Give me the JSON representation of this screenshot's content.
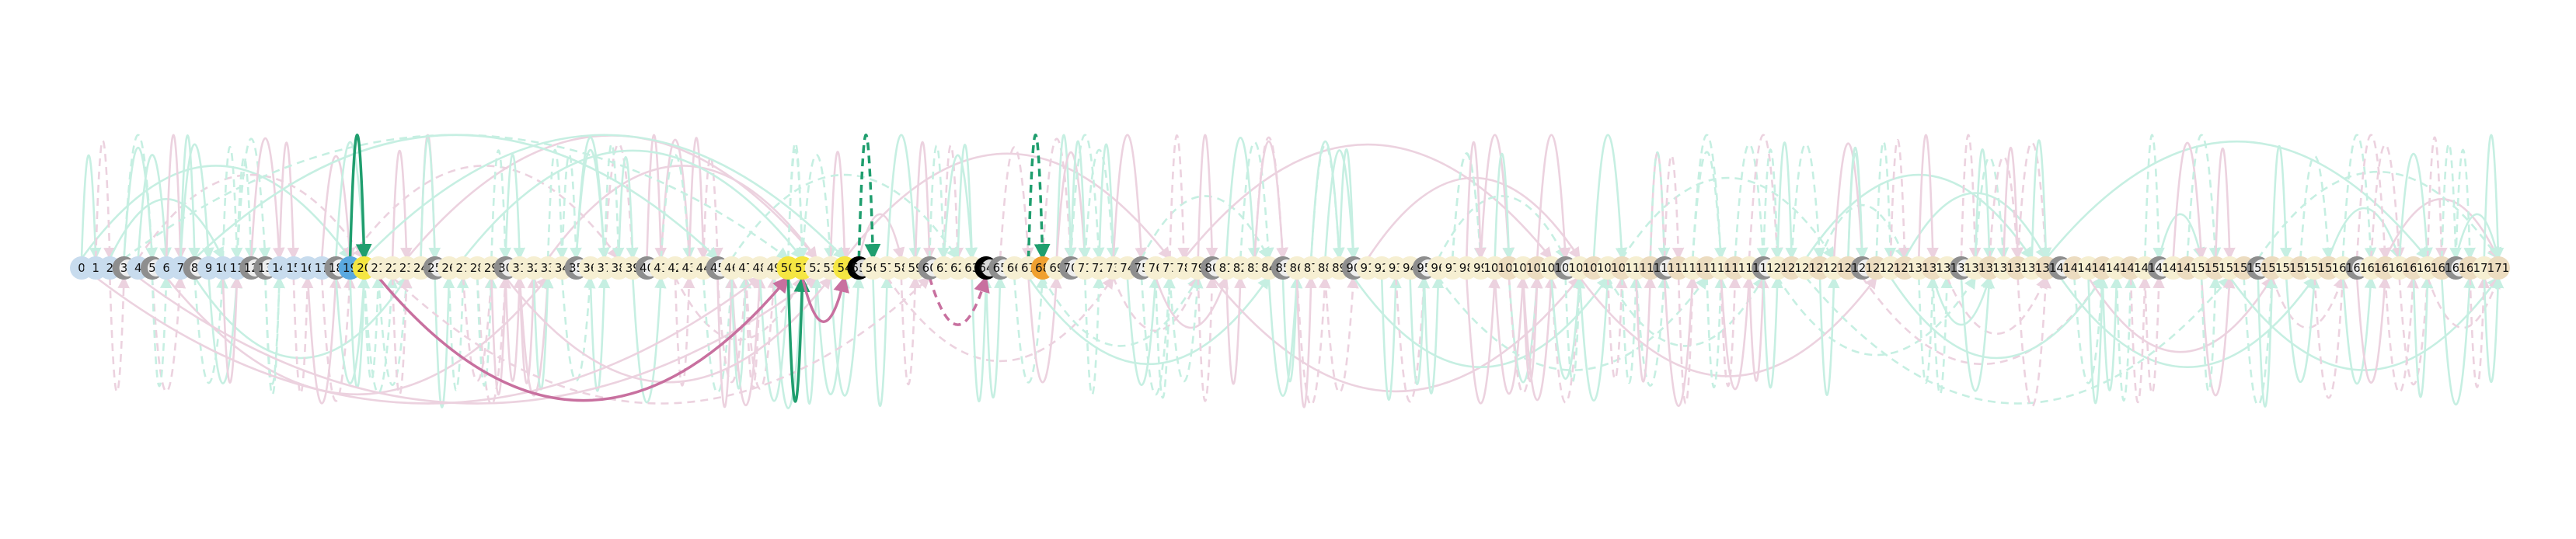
{
  "diagram": {
    "type": "arc-diagram",
    "node_count": 172,
    "node_labels": [
      "0",
      "1",
      "2",
      "3",
      "4",
      "5",
      "6",
      "7",
      "8",
      "9",
      "10",
      "11",
      "12",
      "13",
      "14",
      "15",
      "16",
      "17",
      "18",
      "19",
      "20",
      "21",
      "22",
      "23",
      "24",
      "25",
      "26",
      "27",
      "28",
      "29",
      "30",
      "31",
      "32",
      "33",
      "34",
      "35",
      "36",
      "37",
      "38",
      "39",
      "40",
      "41",
      "42",
      "43",
      "44",
      "45",
      "46",
      "47",
      "48",
      "49",
      "50",
      "51",
      "52",
      "53",
      "54",
      "55",
      "56",
      "57",
      "58",
      "59",
      "60",
      "61",
      "62",
      "63",
      "64",
      "65",
      "66",
      "67",
      "68",
      "69",
      "70",
      "71",
      "72",
      "73",
      "74",
      "75",
      "76",
      "77",
      "78",
      "79",
      "80",
      "81",
      "82",
      "83",
      "84",
      "85",
      "86",
      "87",
      "88",
      "89",
      "90",
      "91",
      "92",
      "93",
      "94",
      "95",
      "96",
      "97",
      "98",
      "99",
      "100",
      "101",
      "102",
      "103",
      "104",
      "105",
      "106",
      "107",
      "108",
      "109",
      "110",
      "111",
      "112",
      "113",
      "114",
      "115",
      "116",
      "117",
      "118",
      "119",
      "120",
      "121",
      "122",
      "123",
      "124",
      "125",
      "126",
      "127",
      "128",
      "129",
      "130",
      "131",
      "132",
      "133",
      "134",
      "135",
      "136",
      "137",
      "138",
      "139",
      "140",
      "141",
      "142",
      "143",
      "144",
      "145",
      "146",
      "147",
      "148",
      "149",
      "150",
      "151",
      "152",
      "153",
      "154",
      "155",
      "156",
      "157",
      "158",
      "159",
      "160",
      "161",
      "162",
      "163",
      "164",
      "165",
      "166",
      "167",
      "168",
      "169",
      "170",
      "171"
    ],
    "colors": {
      "node_blue": "#c8dcee",
      "node_cream": "#f6efd2",
      "node_tan": "#ecdcc0",
      "node_gray": "#8e8e8e",
      "node_black": "#000000",
      "node_yellow": "#f5e642",
      "node_orange": "#f0a030",
      "node_highlight_blue": "#5aa9e0",
      "edge_green_faint": "#c6efe2",
      "edge_pink_faint": "#ecd2df",
      "edge_green_strong": "#1f9e6e",
      "edge_pink_strong": "#c8709f"
    },
    "highlight_nodes": [
      19,
      20,
      50,
      51,
      54,
      55,
      64,
      68
    ],
    "highlight_edges": [
      {
        "from": 19,
        "to": 20,
        "side": "top",
        "style": "solid",
        "color": "green"
      },
      {
        "from": 55,
        "to": 56,
        "side": "top",
        "style": "dashed",
        "color": "green"
      },
      {
        "from": 67,
        "to": 68,
        "side": "top",
        "style": "dashed",
        "color": "green"
      },
      {
        "from": 21,
        "to": 50,
        "side": "bottom",
        "style": "solid",
        "color": "pink"
      },
      {
        "from": 50,
        "to": 51,
        "side": "bottom",
        "style": "solid",
        "color": "green"
      },
      {
        "from": 51,
        "to": 54,
        "side": "bottom",
        "style": "solid",
        "color": "pink"
      },
      {
        "from": 60,
        "to": 64,
        "side": "bottom",
        "style": "dashed",
        "color": "pink"
      }
    ]
  }
}
